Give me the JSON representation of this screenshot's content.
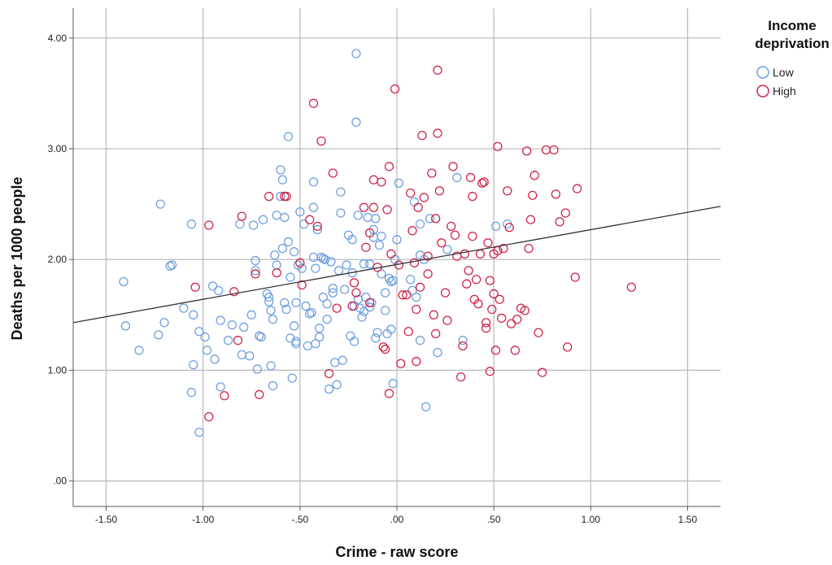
{
  "chart_data": {
    "type": "scatter",
    "xlabel": "Crime - raw score",
    "ylabel": "Deaths per 1000 people",
    "xlim": [
      -1.67,
      1.67
    ],
    "ylim": [
      -0.23,
      4.27
    ],
    "xticks": [
      -1.5,
      -1.0,
      -0.5,
      0.0,
      0.5,
      1.0,
      1.5
    ],
    "xtick_labels": [
      "-1.50",
      "-1.00",
      "-.50",
      ".00",
      ".50",
      "1.00",
      "1.50"
    ],
    "yticks": [
      0,
      1,
      2,
      3,
      4
    ],
    "ytick_labels": [
      ".00",
      "1.00",
      "2.00",
      "3.00",
      "4.00"
    ],
    "grid": true,
    "legend": {
      "title_lines": [
        "Income",
        "deprivation"
      ],
      "position": "right",
      "entries": [
        "Low",
        "High"
      ]
    },
    "fit_line": {
      "x": [
        -1.67,
        1.67
      ],
      "y": [
        1.43,
        2.48
      ],
      "color": "#333333"
    },
    "series": [
      {
        "name": "Low",
        "color": "#6f9fe0",
        "points": [
          [
            -1.41,
            1.8
          ],
          [
            -1.4,
            1.4
          ],
          [
            -1.33,
            1.18
          ],
          [
            -1.22,
            2.5
          ],
          [
            -1.2,
            1.43
          ],
          [
            -1.23,
            1.32
          ],
          [
            -1.17,
            1.94
          ],
          [
            -1.16,
            1.95
          ],
          [
            -1.1,
            1.56
          ],
          [
            -1.06,
            2.32
          ],
          [
            -1.05,
            1.5
          ],
          [
            -1.05,
            1.05
          ],
          [
            -1.06,
            0.8
          ],
          [
            -1.02,
            1.35
          ],
          [
            -1.02,
            0.44
          ],
          [
            -0.99,
            1.3
          ],
          [
            -0.98,
            1.18
          ],
          [
            -0.95,
            1.76
          ],
          [
            -0.94,
            1.1
          ],
          [
            -0.92,
            1.72
          ],
          [
            -0.91,
            1.45
          ],
          [
            -0.91,
            0.85
          ],
          [
            -0.87,
            1.27
          ],
          [
            -0.85,
            1.41
          ],
          [
            -0.81,
            2.32
          ],
          [
            -0.8,
            1.14
          ],
          [
            -0.79,
            1.39
          ],
          [
            -0.76,
            1.13
          ],
          [
            -0.75,
            1.5
          ],
          [
            -0.74,
            2.31
          ],
          [
            -0.73,
            1.9
          ],
          [
            -0.73,
            1.99
          ],
          [
            -0.72,
            1.01
          ],
          [
            -0.71,
            1.31
          ],
          [
            -0.7,
            1.3
          ],
          [
            -0.69,
            2.36
          ],
          [
            -0.67,
            1.69
          ],
          [
            -0.66,
            1.66
          ],
          [
            -0.66,
            1.62
          ],
          [
            -0.65,
            1.54
          ],
          [
            -0.65,
            1.04
          ],
          [
            -0.64,
            1.46
          ],
          [
            -0.64,
            0.86
          ],
          [
            -0.63,
            2.04
          ],
          [
            -0.62,
            2.4
          ],
          [
            -0.62,
            1.95
          ],
          [
            -0.6,
            2.57
          ],
          [
            -0.6,
            2.81
          ],
          [
            -0.59,
            2.72
          ],
          [
            -0.59,
            2.1
          ],
          [
            -0.58,
            2.38
          ],
          [
            -0.58,
            1.61
          ],
          [
            -0.57,
            1.55
          ],
          [
            -0.56,
            3.11
          ],
          [
            -0.56,
            2.16
          ],
          [
            -0.55,
            1.84
          ],
          [
            -0.55,
            1.29
          ],
          [
            -0.54,
            0.93
          ],
          [
            -0.53,
            2.07
          ],
          [
            -0.53,
            1.4
          ],
          [
            -0.52,
            1.61
          ],
          [
            -0.52,
            1.26
          ],
          [
            -0.52,
            1.24
          ],
          [
            -0.51,
            1.95
          ],
          [
            -0.5,
            2.43
          ],
          [
            -0.49,
            1.92
          ],
          [
            -0.48,
            2.32
          ],
          [
            -0.47,
            1.58
          ],
          [
            -0.46,
            1.22
          ],
          [
            -0.45,
            1.51
          ],
          [
            -0.44,
            1.52
          ],
          [
            -0.43,
            2.7
          ],
          [
            -0.43,
            2.47
          ],
          [
            -0.43,
            2.02
          ],
          [
            -0.42,
            1.92
          ],
          [
            -0.42,
            1.24
          ],
          [
            -0.41,
            2.27
          ],
          [
            -0.4,
            1.38
          ],
          [
            -0.4,
            1.3
          ],
          [
            -0.39,
            2.02
          ],
          [
            -0.38,
            2.01
          ],
          [
            -0.38,
            1.66
          ],
          [
            -0.37,
            2.0
          ],
          [
            -0.36,
            1.6
          ],
          [
            -0.36,
            1.46
          ],
          [
            -0.35,
            0.83
          ],
          [
            -0.34,
            1.98
          ],
          [
            -0.33,
            1.74
          ],
          [
            -0.33,
            1.7
          ],
          [
            -0.32,
            1.07
          ],
          [
            -0.31,
            0.87
          ],
          [
            -0.3,
            1.9
          ],
          [
            -0.29,
            2.42
          ],
          [
            -0.29,
            2.61
          ],
          [
            -0.28,
            1.09
          ],
          [
            -0.27,
            1.73
          ],
          [
            -0.26,
            1.95
          ],
          [
            -0.25,
            2.22
          ],
          [
            -0.24,
            1.31
          ],
          [
            -0.23,
            1.88
          ],
          [
            -0.23,
            2.18
          ],
          [
            -0.22,
            1.26
          ],
          [
            -0.22,
            1.58
          ],
          [
            -0.21,
            3.24
          ],
          [
            -0.21,
            3.86
          ],
          [
            -0.2,
            2.4
          ],
          [
            -0.2,
            1.64
          ],
          [
            -0.19,
            1.56
          ],
          [
            -0.18,
            1.48
          ],
          [
            -0.17,
            1.96
          ],
          [
            -0.17,
            1.53
          ],
          [
            -0.16,
            1.66
          ],
          [
            -0.15,
            2.38
          ],
          [
            -0.14,
            1.57
          ],
          [
            -0.14,
            1.96
          ],
          [
            -0.13,
            1.61
          ],
          [
            -0.12,
            2.2
          ],
          [
            -0.12,
            2.27
          ],
          [
            -0.11,
            2.37
          ],
          [
            -0.11,
            1.29
          ],
          [
            -0.1,
            1.34
          ],
          [
            -0.09,
            2.13
          ],
          [
            -0.08,
            1.87
          ],
          [
            -0.08,
            2.21
          ],
          [
            -0.06,
            1.54
          ],
          [
            -0.06,
            1.7
          ],
          [
            -0.05,
            1.33
          ],
          [
            -0.04,
            1.83
          ],
          [
            -0.03,
            1.8
          ],
          [
            -0.03,
            1.37
          ],
          [
            -0.02,
            1.81
          ],
          [
            -0.02,
            0.88
          ],
          [
            -0.01,
            2.0
          ],
          [
            0.0,
            2.18
          ],
          [
            0.01,
            2.69
          ],
          [
            0.07,
            1.82
          ],
          [
            0.08,
            1.72
          ],
          [
            0.09,
            2.52
          ],
          [
            0.1,
            1.66
          ],
          [
            0.12,
            2.04
          ],
          [
            0.12,
            2.32
          ],
          [
            0.12,
            1.27
          ],
          [
            0.14,
            2.0
          ],
          [
            0.15,
            0.67
          ],
          [
            0.17,
            2.37
          ],
          [
            0.21,
            1.16
          ],
          [
            0.26,
            2.09
          ],
          [
            0.31,
            2.74
          ],
          [
            0.34,
            1.27
          ],
          [
            0.51,
            2.3
          ],
          [
            0.57,
            2.32
          ]
        ]
      },
      {
        "name": "High",
        "color": "#d0264a",
        "points": [
          [
            -1.04,
            1.75
          ],
          [
            -0.97,
            2.31
          ],
          [
            -0.97,
            0.58
          ],
          [
            -0.89,
            0.77
          ],
          [
            -0.84,
            1.71
          ],
          [
            -0.82,
            1.27
          ],
          [
            -0.8,
            2.39
          ],
          [
            -0.73,
            1.87
          ],
          [
            -0.71,
            0.78
          ],
          [
            -0.66,
            2.57
          ],
          [
            -0.62,
            1.88
          ],
          [
            -0.58,
            2.57
          ],
          [
            -0.57,
            2.57
          ],
          [
            -0.5,
            1.97
          ],
          [
            -0.49,
            1.77
          ],
          [
            -0.45,
            2.36
          ],
          [
            -0.43,
            3.41
          ],
          [
            -0.41,
            2.3
          ],
          [
            -0.39,
            3.07
          ],
          [
            -0.35,
            0.97
          ],
          [
            -0.33,
            2.78
          ],
          [
            -0.31,
            1.56
          ],
          [
            -0.23,
            1.58
          ],
          [
            -0.22,
            1.79
          ],
          [
            -0.21,
            1.7
          ],
          [
            -0.17,
            2.47
          ],
          [
            -0.16,
            2.11
          ],
          [
            -0.14,
            2.24
          ],
          [
            -0.14,
            1.61
          ],
          [
            -0.12,
            2.72
          ],
          [
            -0.12,
            2.47
          ],
          [
            -0.1,
            1.93
          ],
          [
            -0.08,
            2.7
          ],
          [
            -0.07,
            1.21
          ],
          [
            -0.06,
            1.19
          ],
          [
            -0.05,
            2.45
          ],
          [
            -0.04,
            2.84
          ],
          [
            -0.04,
            0.79
          ],
          [
            -0.03,
            2.05
          ],
          [
            -0.01,
            3.54
          ],
          [
            0.01,
            1.95
          ],
          [
            0.02,
            1.06
          ],
          [
            0.03,
            1.68
          ],
          [
            0.05,
            1.68
          ],
          [
            0.06,
            1.35
          ],
          [
            0.07,
            2.6
          ],
          [
            0.08,
            2.26
          ],
          [
            0.09,
            1.97
          ],
          [
            0.1,
            1.55
          ],
          [
            0.1,
            1.08
          ],
          [
            0.11,
            2.47
          ],
          [
            0.12,
            1.75
          ],
          [
            0.13,
            3.12
          ],
          [
            0.14,
            2.56
          ],
          [
            0.16,
            1.87
          ],
          [
            0.16,
            2.03
          ],
          [
            0.18,
            2.78
          ],
          [
            0.19,
            1.5
          ],
          [
            0.2,
            2.37
          ],
          [
            0.2,
            1.33
          ],
          [
            0.21,
            3.71
          ],
          [
            0.21,
            3.14
          ],
          [
            0.22,
            2.62
          ],
          [
            0.23,
            2.15
          ],
          [
            0.25,
            1.7
          ],
          [
            0.26,
            1.45
          ],
          [
            0.28,
            2.3
          ],
          [
            0.29,
            2.84
          ],
          [
            0.3,
            2.22
          ],
          [
            0.31,
            2.03
          ],
          [
            0.33,
            0.94
          ],
          [
            0.34,
            1.22
          ],
          [
            0.35,
            2.05
          ],
          [
            0.36,
            1.78
          ],
          [
            0.37,
            1.9
          ],
          [
            0.38,
            2.74
          ],
          [
            0.39,
            2.57
          ],
          [
            0.39,
            2.21
          ],
          [
            0.4,
            1.64
          ],
          [
            0.41,
            1.82
          ],
          [
            0.42,
            1.6
          ],
          [
            0.43,
            2.05
          ],
          [
            0.44,
            2.69
          ],
          [
            0.45,
            2.7
          ],
          [
            0.46,
            1.43
          ],
          [
            0.46,
            1.38
          ],
          [
            0.47,
            2.15
          ],
          [
            0.48,
            0.99
          ],
          [
            0.48,
            1.81
          ],
          [
            0.49,
            1.55
          ],
          [
            0.5,
            2.05
          ],
          [
            0.5,
            1.69
          ],
          [
            0.51,
            1.18
          ],
          [
            0.52,
            3.02
          ],
          [
            0.52,
            2.08
          ],
          [
            0.53,
            1.64
          ],
          [
            0.54,
            1.47
          ],
          [
            0.55,
            2.1
          ],
          [
            0.57,
            2.62
          ],
          [
            0.58,
            2.29
          ],
          [
            0.59,
            1.42
          ],
          [
            0.61,
            1.18
          ],
          [
            0.62,
            1.46
          ],
          [
            0.64,
            1.56
          ],
          [
            0.66,
            1.54
          ],
          [
            0.67,
            2.98
          ],
          [
            0.68,
            2.1
          ],
          [
            0.69,
            2.36
          ],
          [
            0.7,
            2.58
          ],
          [
            0.71,
            2.76
          ],
          [
            0.73,
            1.34
          ],
          [
            0.75,
            0.98
          ],
          [
            0.77,
            2.99
          ],
          [
            0.81,
            2.99
          ],
          [
            0.82,
            2.59
          ],
          [
            0.84,
            2.34
          ],
          [
            0.87,
            2.42
          ],
          [
            0.88,
            1.21
          ],
          [
            0.92,
            1.84
          ],
          [
            0.93,
            2.64
          ],
          [
            1.21,
            1.75
          ]
        ]
      }
    ]
  }
}
